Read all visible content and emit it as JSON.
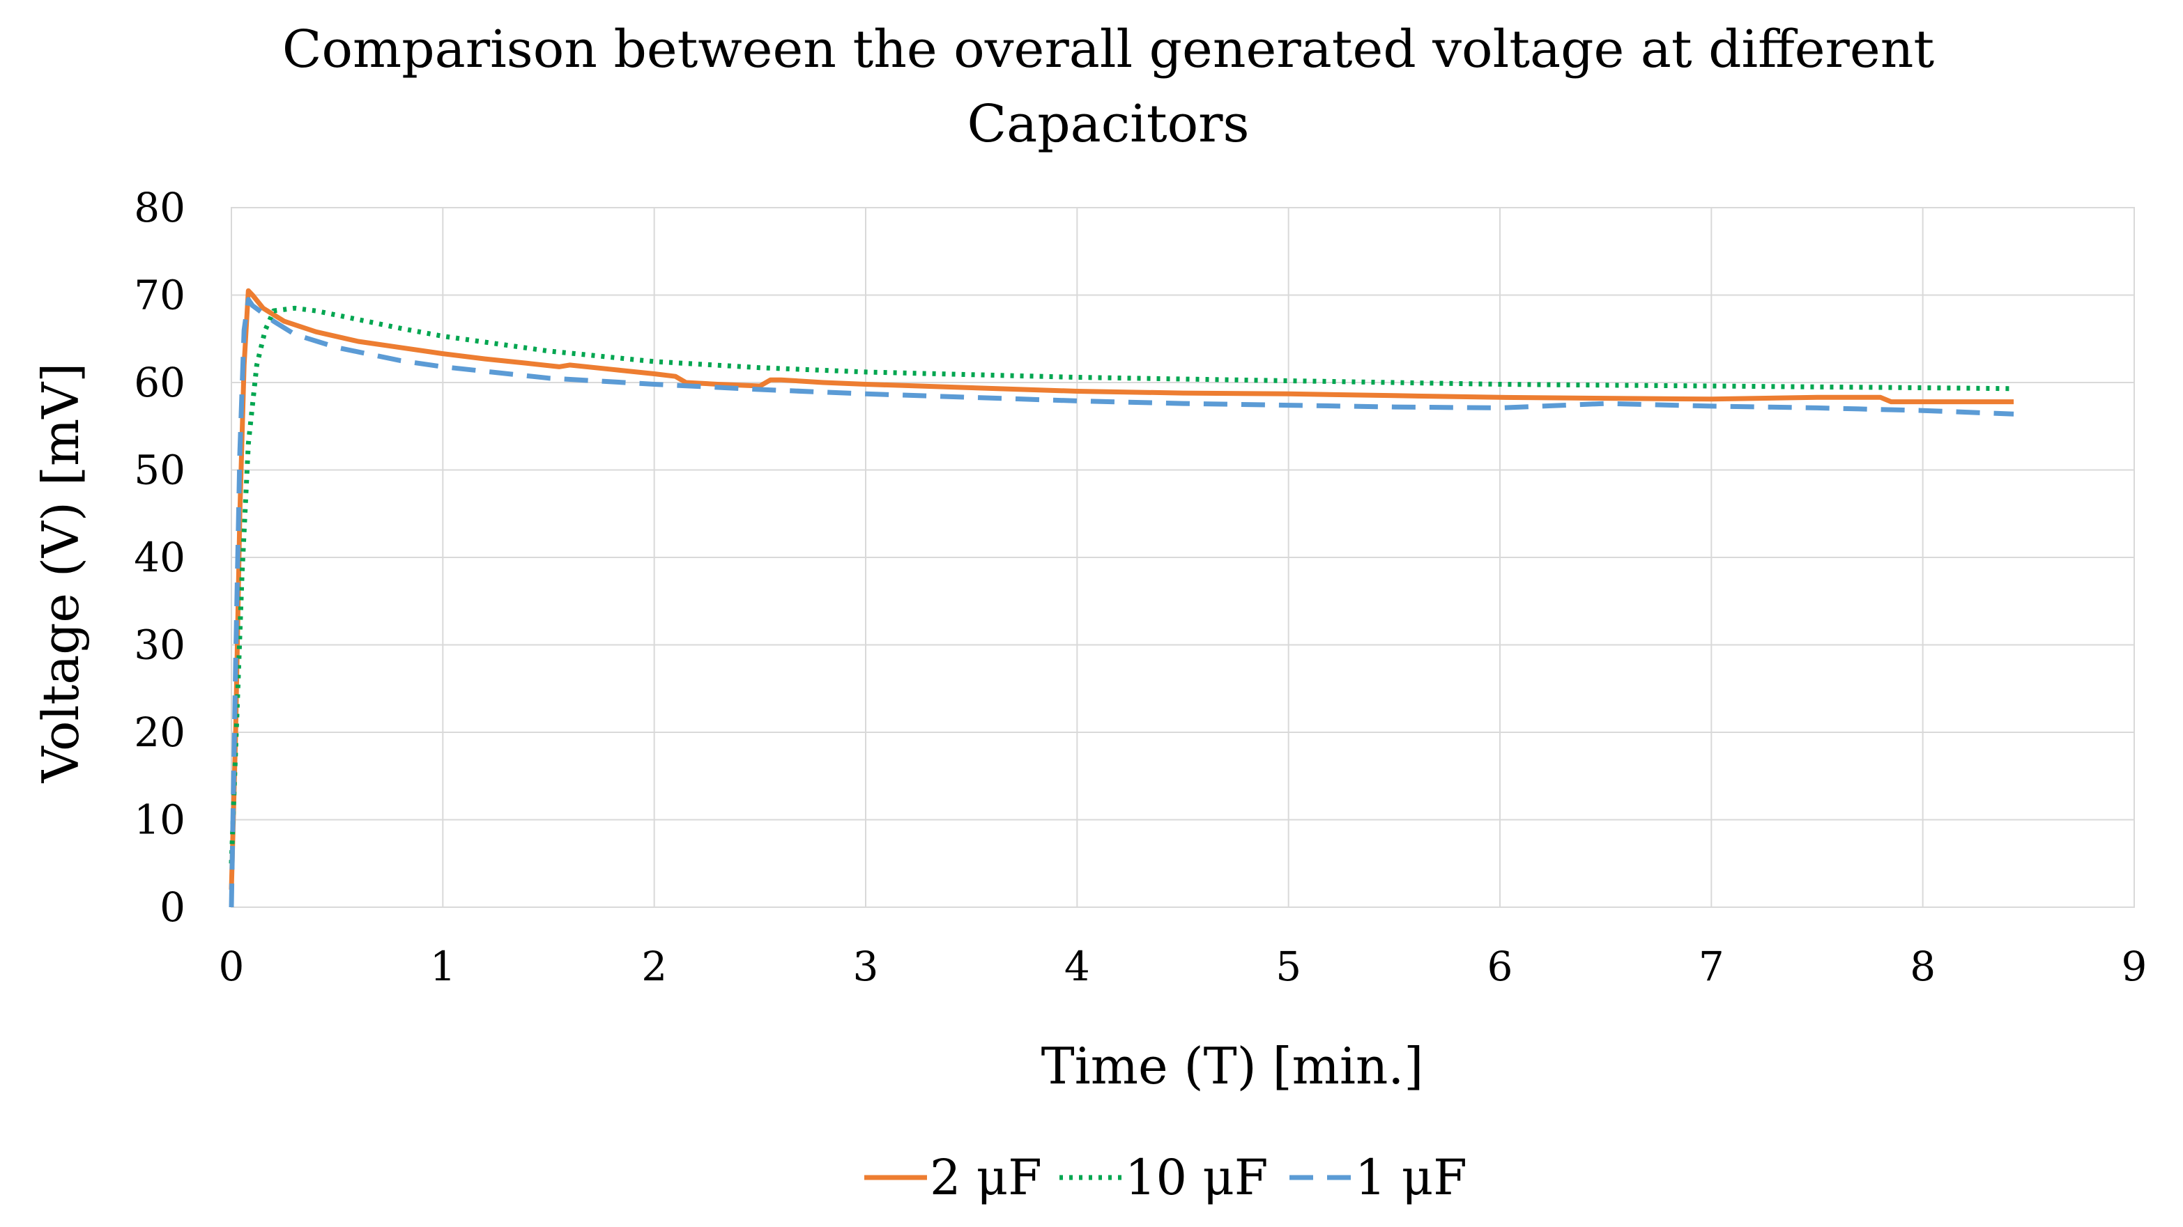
{
  "chart_data": {
    "type": "line",
    "title": [
      "Comparison between the overall generated voltage at different",
      "Capacitors"
    ],
    "xlabel": "Time (T) [min.]",
    "ylabel": "Voltage (V)  [mV]",
    "xlim": [
      0,
      9
    ],
    "ylim": [
      0,
      80
    ],
    "xticks": [
      0,
      1,
      2,
      3,
      4,
      5,
      6,
      7,
      8,
      9
    ],
    "yticks": [
      0,
      10,
      20,
      30,
      40,
      50,
      60,
      70,
      80
    ],
    "grid": true,
    "legend_position": "bottom-center",
    "series": [
      {
        "name": "2 μF",
        "color": "#ED7D31",
        "style": "solid",
        "x": [
          0,
          0.02,
          0.04,
          0.06,
          0.08,
          0.1,
          0.15,
          0.25,
          0.4,
          0.6,
          0.8,
          1.0,
          1.2,
          1.4,
          1.55,
          1.6,
          1.8,
          2.0,
          2.1,
          2.15,
          2.3,
          2.5,
          2.55,
          2.6,
          2.8,
          3.0,
          3.5,
          4.0,
          4.5,
          5.0,
          5.5,
          6.0,
          6.5,
          7.0,
          7.5,
          7.8,
          7.85,
          8.2,
          8.43
        ],
        "y": [
          2,
          20,
          45,
          62,
          70.5,
          70,
          68.5,
          67,
          65.8,
          64.7,
          64,
          63.3,
          62.7,
          62.2,
          61.8,
          62,
          61.5,
          61,
          60.7,
          60,
          59.8,
          59.6,
          60.3,
          60.3,
          60,
          59.8,
          59.4,
          59,
          58.8,
          58.7,
          58.5,
          58.3,
          58.2,
          58.1,
          58.3,
          58.3,
          57.8,
          57.8,
          57.8
        ]
      },
      {
        "name": "10 μF",
        "color": "#00A650",
        "style": "dotted",
        "x": [
          0,
          0.02,
          0.05,
          0.08,
          0.12,
          0.16,
          0.2,
          0.3,
          0.4,
          0.6,
          0.8,
          1.0,
          1.5,
          2.0,
          2.5,
          3.0,
          3.5,
          4.0,
          4.5,
          5.0,
          5.5,
          6.0,
          6.5,
          7.0,
          7.5,
          8.0,
          8.43
        ],
        "y": [
          5,
          18,
          38,
          53,
          62,
          66,
          68.2,
          68.5,
          68.2,
          67.2,
          66.2,
          65.3,
          63.6,
          62.4,
          61.7,
          61.2,
          60.9,
          60.6,
          60.4,
          60.2,
          60,
          59.8,
          59.7,
          59.6,
          59.5,
          59.4,
          59.3
        ]
      },
      {
        "name": "1 μF",
        "color": "#5B9BD5",
        "style": "dashed",
        "x": [
          0,
          0.02,
          0.04,
          0.06,
          0.08,
          0.1,
          0.2,
          0.3,
          0.5,
          0.8,
          1.0,
          1.5,
          2.0,
          2.5,
          3.0,
          3.5,
          4.0,
          4.5,
          5.0,
          5.5,
          6.0,
          6.5,
          7.0,
          7.5,
          8.0,
          8.43
        ],
        "y": [
          0,
          28,
          52,
          66,
          69.5,
          68.8,
          67,
          65.5,
          64,
          62.5,
          61.8,
          60.5,
          59.8,
          59.2,
          58.7,
          58.3,
          57.9,
          57.6,
          57.4,
          57.2,
          57.1,
          57.6,
          57.3,
          57.1,
          56.8,
          56.4
        ]
      }
    ]
  }
}
